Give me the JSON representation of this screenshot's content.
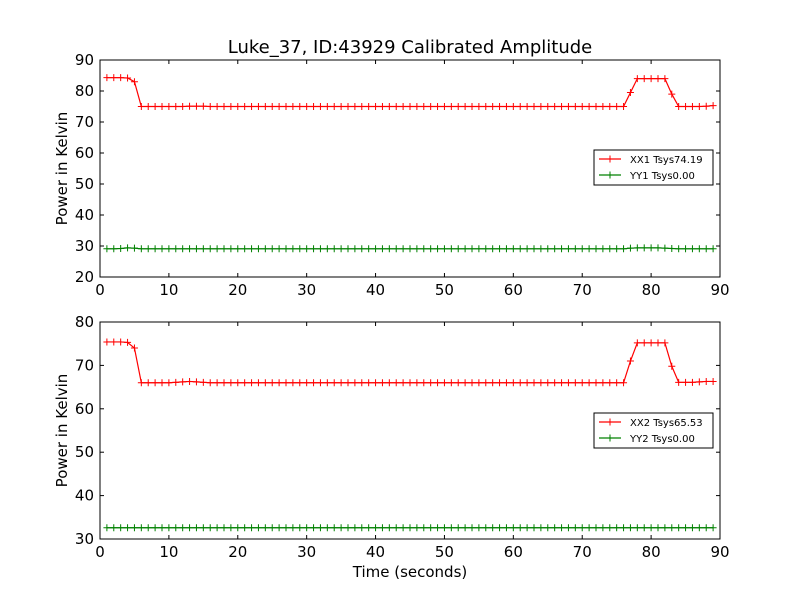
{
  "figure": {
    "title": "Luke_37, ID:43929 Calibrated Amplitude",
    "xlabel": "Time (seconds)"
  },
  "chart_data": [
    {
      "type": "line",
      "title": "Luke_37, ID:43929 Calibrated Amplitude",
      "xlabel": "",
      "ylabel": "Power in Kelvin",
      "xlim": [
        0,
        90
      ],
      "ylim": [
        20,
        90
      ],
      "xticks": [
        0,
        10,
        20,
        30,
        40,
        50,
        60,
        70,
        80,
        90
      ],
      "yticks": [
        20,
        30,
        40,
        50,
        60,
        70,
        80,
        90
      ],
      "legend": {
        "placement": "center-right"
      },
      "series": [
        {
          "name": "XX1 Tsys74.19",
          "color": "#ff0000",
          "marker": "+",
          "x": [
            1,
            2,
            3,
            4,
            5,
            6,
            7,
            8,
            9,
            10,
            11,
            12,
            13,
            14,
            15,
            16,
            17,
            18,
            19,
            20,
            21,
            22,
            23,
            24,
            25,
            26,
            27,
            28,
            29,
            30,
            31,
            32,
            33,
            34,
            35,
            36,
            37,
            38,
            39,
            40,
            41,
            42,
            43,
            44,
            45,
            46,
            47,
            48,
            49,
            50,
            51,
            52,
            53,
            54,
            55,
            56,
            57,
            58,
            59,
            60,
            61,
            62,
            63,
            64,
            65,
            66,
            67,
            68,
            69,
            70,
            71,
            72,
            73,
            74,
            75,
            76,
            77,
            78,
            79,
            80,
            81,
            82,
            83,
            84,
            85,
            86,
            87,
            88,
            89
          ],
          "y": [
            84.3,
            84.3,
            84.3,
            84.2,
            83.0,
            75.0,
            75.0,
            75.0,
            75.0,
            75.0,
            75.0,
            75.0,
            75.1,
            75.1,
            75.1,
            75.0,
            75.0,
            75.0,
            75.0,
            75.0,
            75.0,
            75.0,
            75.0,
            75.0,
            75.0,
            75.0,
            75.0,
            75.0,
            75.0,
            75.0,
            75.0,
            75.0,
            75.0,
            75.0,
            75.0,
            75.0,
            75.0,
            75.0,
            75.0,
            75.0,
            75.0,
            75.0,
            75.0,
            75.0,
            75.0,
            75.0,
            75.0,
            75.0,
            75.0,
            75.0,
            75.0,
            75.0,
            75.0,
            75.0,
            75.0,
            75.0,
            75.0,
            75.0,
            75.0,
            75.0,
            75.0,
            75.0,
            75.0,
            75.0,
            75.0,
            75.0,
            75.0,
            75.0,
            75.0,
            75.0,
            75.0,
            75.0,
            75.0,
            75.0,
            75.0,
            75.0,
            79.5,
            84.0,
            84.0,
            84.0,
            84.0,
            84.0,
            79.0,
            75.0,
            75.0,
            75.0,
            75.0,
            75.1,
            75.3
          ]
        },
        {
          "name": "YY1 Tsys0.00",
          "color": "#008000",
          "marker": "+",
          "x": [
            1,
            2,
            3,
            4,
            5,
            6,
            7,
            8,
            9,
            10,
            11,
            12,
            13,
            14,
            15,
            16,
            17,
            18,
            19,
            20,
            21,
            22,
            23,
            24,
            25,
            26,
            27,
            28,
            29,
            30,
            31,
            32,
            33,
            34,
            35,
            36,
            37,
            38,
            39,
            40,
            41,
            42,
            43,
            44,
            45,
            46,
            47,
            48,
            49,
            50,
            51,
            52,
            53,
            54,
            55,
            56,
            57,
            58,
            59,
            60,
            61,
            62,
            63,
            64,
            65,
            66,
            67,
            68,
            69,
            70,
            71,
            72,
            73,
            74,
            75,
            76,
            77,
            78,
            79,
            80,
            81,
            82,
            83,
            84,
            85,
            86,
            87,
            88,
            89
          ],
          "y": [
            29.1,
            29.1,
            29.2,
            29.4,
            29.3,
            29.1,
            29.1,
            29.1,
            29.1,
            29.1,
            29.1,
            29.1,
            29.1,
            29.1,
            29.1,
            29.1,
            29.1,
            29.1,
            29.1,
            29.1,
            29.1,
            29.1,
            29.1,
            29.1,
            29.1,
            29.1,
            29.1,
            29.1,
            29.1,
            29.1,
            29.1,
            29.1,
            29.1,
            29.1,
            29.1,
            29.1,
            29.1,
            29.1,
            29.1,
            29.1,
            29.1,
            29.1,
            29.1,
            29.1,
            29.1,
            29.1,
            29.1,
            29.1,
            29.1,
            29.1,
            29.1,
            29.1,
            29.1,
            29.1,
            29.1,
            29.1,
            29.1,
            29.1,
            29.1,
            29.1,
            29.1,
            29.1,
            29.1,
            29.1,
            29.1,
            29.1,
            29.1,
            29.1,
            29.1,
            29.1,
            29.1,
            29.1,
            29.1,
            29.1,
            29.1,
            29.1,
            29.3,
            29.4,
            29.4,
            29.4,
            29.4,
            29.3,
            29.2,
            29.1,
            29.1,
            29.1,
            29.1,
            29.1,
            29.1
          ]
        }
      ]
    },
    {
      "type": "line",
      "title": "",
      "xlabel": "Time (seconds)",
      "ylabel": "Power in Kelvin",
      "xlim": [
        0,
        90
      ],
      "ylim": [
        30,
        80
      ],
      "xticks": [
        0,
        10,
        20,
        30,
        40,
        50,
        60,
        70,
        80,
        90
      ],
      "yticks": [
        30,
        40,
        50,
        60,
        70,
        80
      ],
      "legend": {
        "placement": "center-right"
      },
      "series": [
        {
          "name": "XX2 Tsys65.53",
          "color": "#ff0000",
          "marker": "+",
          "x": [
            1,
            2,
            3,
            4,
            5,
            6,
            7,
            8,
            9,
            10,
            11,
            12,
            13,
            14,
            15,
            16,
            17,
            18,
            19,
            20,
            21,
            22,
            23,
            24,
            25,
            26,
            27,
            28,
            29,
            30,
            31,
            32,
            33,
            34,
            35,
            36,
            37,
            38,
            39,
            40,
            41,
            42,
            43,
            44,
            45,
            46,
            47,
            48,
            49,
            50,
            51,
            52,
            53,
            54,
            55,
            56,
            57,
            58,
            59,
            60,
            61,
            62,
            63,
            64,
            65,
            66,
            67,
            68,
            69,
            70,
            71,
            72,
            73,
            74,
            75,
            76,
            77,
            78,
            79,
            80,
            81,
            82,
            83,
            84,
            85,
            86,
            87,
            88,
            89
          ],
          "y": [
            75.4,
            75.4,
            75.4,
            75.3,
            74.0,
            66.0,
            66.0,
            66.0,
            66.0,
            66.0,
            66.1,
            66.2,
            66.3,
            66.2,
            66.1,
            66.0,
            66.0,
            66.0,
            66.0,
            66.0,
            66.0,
            66.0,
            66.0,
            66.0,
            66.0,
            66.0,
            66.0,
            66.0,
            66.0,
            66.0,
            66.0,
            66.0,
            66.0,
            66.0,
            66.0,
            66.0,
            66.0,
            66.0,
            66.0,
            66.0,
            66.0,
            66.0,
            66.0,
            66.0,
            66.0,
            66.0,
            66.0,
            66.0,
            66.0,
            66.0,
            66.0,
            66.0,
            66.0,
            66.0,
            66.0,
            66.0,
            66.0,
            66.0,
            66.0,
            66.0,
            66.0,
            66.0,
            66.0,
            66.0,
            66.0,
            66.0,
            66.0,
            66.0,
            66.0,
            66.0,
            66.0,
            66.0,
            66.0,
            66.0,
            66.0,
            66.0,
            71.0,
            75.2,
            75.2,
            75.2,
            75.2,
            75.2,
            69.8,
            66.1,
            66.1,
            66.1,
            66.2,
            66.3,
            66.3
          ]
        },
        {
          "name": "YY2 Tsys0.00",
          "color": "#008000",
          "marker": "+",
          "x": [
            1,
            2,
            3,
            4,
            5,
            6,
            7,
            8,
            9,
            10,
            11,
            12,
            13,
            14,
            15,
            16,
            17,
            18,
            19,
            20,
            21,
            22,
            23,
            24,
            25,
            26,
            27,
            28,
            29,
            30,
            31,
            32,
            33,
            34,
            35,
            36,
            37,
            38,
            39,
            40,
            41,
            42,
            43,
            44,
            45,
            46,
            47,
            48,
            49,
            50,
            51,
            52,
            53,
            54,
            55,
            56,
            57,
            58,
            59,
            60,
            61,
            62,
            63,
            64,
            65,
            66,
            67,
            68,
            69,
            70,
            71,
            72,
            73,
            74,
            75,
            76,
            77,
            78,
            79,
            80,
            81,
            82,
            83,
            84,
            85,
            86,
            87,
            88,
            89
          ],
          "y": [
            32.6,
            32.6,
            32.6,
            32.6,
            32.6,
            32.6,
            32.6,
            32.6,
            32.6,
            32.6,
            32.6,
            32.6,
            32.6,
            32.6,
            32.6,
            32.6,
            32.6,
            32.6,
            32.6,
            32.6,
            32.6,
            32.6,
            32.6,
            32.6,
            32.6,
            32.6,
            32.6,
            32.6,
            32.6,
            32.6,
            32.6,
            32.6,
            32.6,
            32.6,
            32.6,
            32.6,
            32.6,
            32.6,
            32.6,
            32.6,
            32.6,
            32.6,
            32.6,
            32.6,
            32.6,
            32.6,
            32.6,
            32.6,
            32.6,
            32.6,
            32.6,
            32.6,
            32.6,
            32.6,
            32.6,
            32.6,
            32.6,
            32.6,
            32.6,
            32.6,
            32.6,
            32.6,
            32.6,
            32.6,
            32.6,
            32.6,
            32.6,
            32.6,
            32.6,
            32.6,
            32.6,
            32.6,
            32.6,
            32.6,
            32.6,
            32.6,
            32.6,
            32.6,
            32.6,
            32.6,
            32.6,
            32.6,
            32.6,
            32.6,
            32.6,
            32.6,
            32.6,
            32.6,
            32.6
          ]
        }
      ]
    }
  ]
}
